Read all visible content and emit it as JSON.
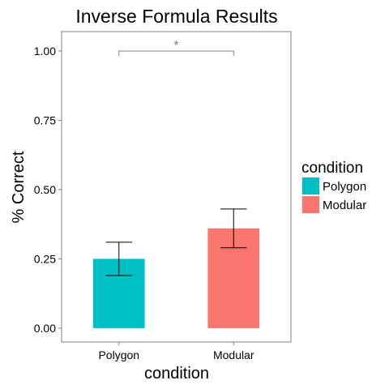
{
  "chart_data": {
    "type": "bar",
    "title": "Inverse Formula Results",
    "xlabel": "condition",
    "ylabel": "% Correct",
    "categories": [
      "Polygon",
      "Modular"
    ],
    "values": [
      0.25,
      0.36
    ],
    "error_low": [
      0.19,
      0.29
    ],
    "error_high": [
      0.31,
      0.43
    ],
    "colors": [
      "#00BFC4",
      "#F8766D"
    ],
    "ylim": [
      -0.05,
      1.07
    ],
    "yticks": [
      0.0,
      0.25,
      0.5,
      0.75,
      1.0
    ],
    "ytick_labels": [
      "0.00",
      "0.25",
      "0.50",
      "0.75",
      "1.00"
    ],
    "grid": false,
    "legend": {
      "title": "condition",
      "position": "right",
      "entries": [
        {
          "label": "Polygon",
          "color": "#00BFC4"
        },
        {
          "label": "Modular",
          "color": "#F8766D"
        }
      ]
    },
    "annotation": {
      "text": "*",
      "between": [
        "Polygon",
        "Modular"
      ],
      "y": 1.0
    }
  }
}
